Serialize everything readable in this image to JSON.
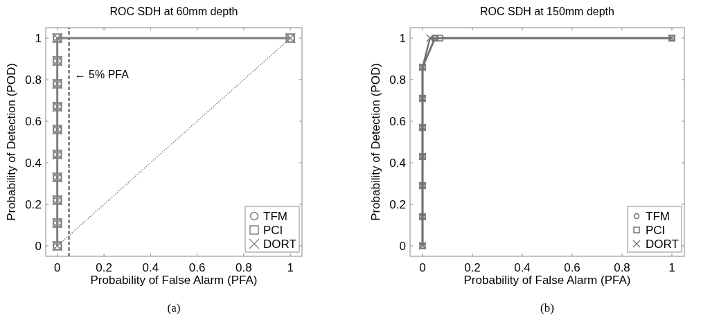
{
  "chart_data": [
    {
      "type": "line",
      "title": "ROC SDH at 60mm depth",
      "xlabel": "Probability of False Alarm (PFA)",
      "ylabel": "Probability of Detection (POD)",
      "xlim": [
        -0.05,
        1.05
      ],
      "ylim": [
        -0.05,
        1.05
      ],
      "xticks": [
        0,
        0.2,
        0.4,
        0.6,
        0.8,
        1
      ],
      "yticks": [
        0,
        0.2,
        0.4,
        0.6,
        0.8,
        1
      ],
      "legend": "bottom right",
      "grid": false,
      "line_style": "solid",
      "annotations": [
        "(a)"
      ],
      "ref_lines": [
        {
          "axis": "x",
          "value": 0.05,
          "label": "← 5% PFA",
          "color": "#000000",
          "line_style": "dashed"
        }
      ],
      "series": [
        {
          "name": "TFM",
          "color": "#808080",
          "marker": "circle",
          "x": [
            0,
            0,
            0,
            0,
            0,
            0,
            0,
            0,
            0,
            0,
            1
          ],
          "values": [
            0,
            0.11,
            0.22,
            0.33,
            0.44,
            0.56,
            0.67,
            0.78,
            0.89,
            1,
            1
          ]
        },
        {
          "name": "PCI",
          "color": "#808080",
          "marker": "square",
          "x": [
            0,
            0,
            0,
            0,
            0,
            0,
            0,
            0,
            0,
            0,
            1
          ],
          "values": [
            0,
            0.11,
            0.22,
            0.33,
            0.44,
            0.56,
            0.67,
            0.78,
            0.89,
            1,
            1
          ]
        },
        {
          "name": "DORT",
          "color": "#808080",
          "marker": "cross",
          "x": [
            0,
            0,
            0,
            0,
            0,
            0,
            0,
            0,
            0,
            0,
            1
          ],
          "values": [
            0,
            0.11,
            0.22,
            0.33,
            0.44,
            0.56,
            0.67,
            0.78,
            0.89,
            1,
            1
          ]
        },
        {
          "color": "#808080",
          "marker": "none",
          "line_style": "dotted",
          "x": [
            0,
            1
          ],
          "values": [
            0,
            1
          ]
        }
      ]
    },
    {
      "type": "line",
      "title": "ROC SDH at 150mm depth",
      "xlabel": "Probability of False Alarm (PFA)",
      "ylabel": "Probability of Detection (POD)",
      "xlim": [
        -0.05,
        1.05
      ],
      "ylim": [
        -0.05,
        1.05
      ],
      "xticks": [
        0,
        0.2,
        0.4,
        0.6,
        0.8,
        1
      ],
      "yticks": [
        0,
        0.2,
        0.4,
        0.6,
        0.8,
        1
      ],
      "legend": "bottom right",
      "grid": false,
      "line_style": "solid",
      "annotations": [
        "(b)"
      ],
      "series": [
        {
          "name": "TFM",
          "color": "#707070",
          "marker": "circle",
          "x": [
            0,
            0,
            0,
            0,
            0,
            0,
            0,
            0.05,
            1
          ],
          "values": [
            0,
            0.14,
            0.29,
            0.43,
            0.57,
            0.71,
            0.86,
            1,
            1
          ]
        },
        {
          "name": "PCI",
          "color": "#707070",
          "marker": "square",
          "x": [
            0,
            0,
            0,
            0,
            0,
            0,
            0,
            0.05,
            0.07,
            1
          ],
          "values": [
            0,
            0.14,
            0.29,
            0.43,
            0.57,
            0.71,
            0.86,
            1,
            1,
            1
          ]
        },
        {
          "name": "DORT",
          "color": "#707070",
          "marker": "cross",
          "x": [
            0,
            0,
            0,
            0,
            0,
            0,
            0,
            0.03,
            1
          ],
          "values": [
            0,
            0.14,
            0.29,
            0.43,
            0.57,
            0.71,
            0.86,
            1,
            1
          ]
        }
      ]
    }
  ]
}
